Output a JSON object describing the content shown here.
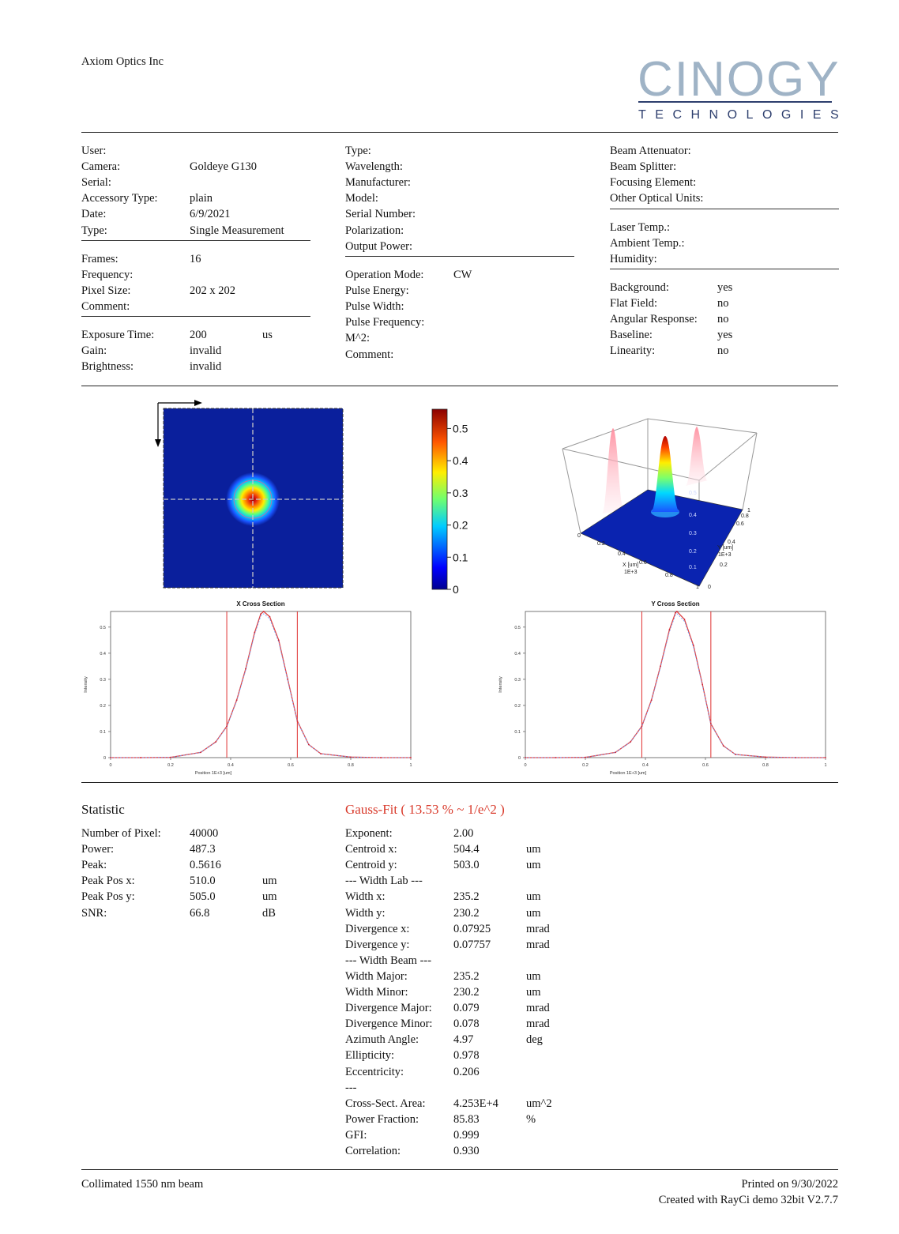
{
  "header": {
    "company": "Axiom Optics Inc",
    "logo_main": "CINOGY",
    "logo_sub": "TECHNOLOGIES"
  },
  "camera_block": {
    "rows1": [
      {
        "label": "User:",
        "value": ""
      },
      {
        "label": "Camera:",
        "value": "Goldeye G130"
      },
      {
        "label": "Serial:",
        "value": ""
      },
      {
        "label": "Accessory Type:",
        "value": "plain"
      },
      {
        "label": "Date:",
        "value": "6/9/2021"
      },
      {
        "label": "Type:",
        "value": "Single Measurement"
      }
    ],
    "rows2": [
      {
        "label": "Frames:",
        "value": "16"
      },
      {
        "label": "Frequency:",
        "value": ""
      },
      {
        "label": "Pixel Size:",
        "value": "202 x 202"
      },
      {
        "label": "Comment:",
        "value": ""
      }
    ],
    "rows3": [
      {
        "label": "Exposure Time:",
        "value": "200",
        "unit": "us"
      },
      {
        "label": "Gain:",
        "value": "invalid",
        "unit": ""
      },
      {
        "label": "Brightness:",
        "value": "invalid",
        "unit": ""
      }
    ]
  },
  "laser_block": {
    "rows1": [
      {
        "label": "Type:",
        "value": ""
      },
      {
        "label": "Wavelength:",
        "value": ""
      },
      {
        "label": "Manufacturer:",
        "value": ""
      },
      {
        "label": "Model:",
        "value": ""
      },
      {
        "label": "Serial Number:",
        "value": ""
      },
      {
        "label": "Polarization:",
        "value": ""
      },
      {
        "label": "Output Power:",
        "value": ""
      }
    ],
    "rows2": [
      {
        "label": "Operation Mode:",
        "value": "CW"
      },
      {
        "label": "Pulse Energy:",
        "value": ""
      },
      {
        "label": "Pulse Width:",
        "value": ""
      },
      {
        "label": "Pulse Frequency:",
        "value": ""
      },
      {
        "label": "M^2:",
        "value": ""
      },
      {
        "label": "Comment:",
        "value": ""
      }
    ]
  },
  "optics_block": {
    "rows1": [
      {
        "label": "Beam Attenuator:",
        "value": ""
      },
      {
        "label": "Beam Splitter:",
        "value": ""
      },
      {
        "label": "Focusing Element:",
        "value": ""
      },
      {
        "label": "Other Optical Units:",
        "value": ""
      }
    ],
    "rows2": [
      {
        "label": "Laser Temp.:",
        "value": ""
      },
      {
        "label": "Ambient Temp.:",
        "value": ""
      },
      {
        "label": "Humidity:",
        "value": ""
      }
    ],
    "rows3": [
      {
        "label": "Background:",
        "value": "yes"
      },
      {
        "label": "Flat Field:",
        "value": "no"
      },
      {
        "label": "Angular Response:",
        "value": "no"
      },
      {
        "label": "Baseline:",
        "value": "yes"
      },
      {
        "label": "Linearity:",
        "value": "no"
      }
    ]
  },
  "colorbar": {
    "ticks": [
      "0.5",
      "0.4",
      "0.3",
      "0.2",
      "0.1",
      "0"
    ]
  },
  "surface_3d": {
    "x_axis_label": "X [um]",
    "x_axis_scale": "1E+3",
    "y_axis_label": "Y [um]",
    "y_axis_scale": "1E+3",
    "x_ticks": [
      "0",
      "0.2",
      "0.4",
      "0.6",
      "0.8",
      "1"
    ],
    "y_ticks": [
      "0",
      "0.2",
      "0.4",
      "0.6",
      "0.8",
      "1"
    ],
    "z_ticks": [
      "0.5",
      "0.4",
      "0.3",
      "0.2",
      "0.1"
    ]
  },
  "chart_data": [
    {
      "type": "line",
      "title": "X Cross Section",
      "xlabel": "Position 1E+3 [um]",
      "ylabel": "Intensity",
      "xlim": [
        0,
        1
      ],
      "ylim": [
        0,
        0.56
      ],
      "x_ticks": [
        "0",
        "0.2",
        "0.4",
        "0.6",
        "0.8",
        "1"
      ],
      "y_ticks": [
        "0",
        "0.1",
        "0.2",
        "0.3",
        "0.4",
        "0.5"
      ],
      "markers": [
        0.387,
        0.622
      ],
      "series": [
        {
          "x": [
            0,
            0.1,
            0.2,
            0.3,
            0.35,
            0.387,
            0.42,
            0.45,
            0.48,
            0.5,
            0.51,
            0.53,
            0.56,
            0.59,
            0.622,
            0.66,
            0.7,
            0.8,
            0.9,
            1.0
          ],
          "values": [
            0,
            0,
            0.001,
            0.02,
            0.06,
            0.12,
            0.22,
            0.34,
            0.48,
            0.55,
            0.56,
            0.54,
            0.45,
            0.3,
            0.14,
            0.05,
            0.015,
            0.002,
            0,
            0
          ]
        }
      ]
    },
    {
      "type": "line",
      "title": "Y Cross Section",
      "xlabel": "Position 1E+3 [um]",
      "ylabel": "Intensity",
      "xlim": [
        0,
        1
      ],
      "ylim": [
        0,
        0.56
      ],
      "x_ticks": [
        "0",
        "0.2",
        "0.4",
        "0.6",
        "0.8",
        "1"
      ],
      "y_ticks": [
        "0",
        "0.1",
        "0.2",
        "0.3",
        "0.4",
        "0.5"
      ],
      "markers": [
        0.388,
        0.618
      ],
      "series": [
        {
          "x": [
            0,
            0.1,
            0.2,
            0.3,
            0.35,
            0.388,
            0.42,
            0.45,
            0.48,
            0.5,
            0.505,
            0.53,
            0.56,
            0.59,
            0.618,
            0.66,
            0.7,
            0.8,
            0.9,
            1.0
          ],
          "values": [
            0,
            0,
            0.001,
            0.02,
            0.06,
            0.12,
            0.22,
            0.35,
            0.49,
            0.555,
            0.56,
            0.53,
            0.43,
            0.28,
            0.13,
            0.045,
            0.012,
            0.002,
            0,
            0
          ]
        }
      ]
    }
  ],
  "statistic": {
    "title": "Statistic",
    "rows": [
      {
        "label": "Number of Pixel:",
        "value": "40000",
        "unit": ""
      },
      {
        "label": "Power:",
        "value": "487.3",
        "unit": ""
      },
      {
        "label": "Peak:",
        "value": "0.5616",
        "unit": ""
      },
      {
        "label": "Peak Pos x:",
        "value": "510.0",
        "unit": "um"
      },
      {
        "label": "Peak Pos y:",
        "value": "505.0",
        "unit": "um"
      },
      {
        "label": "SNR:",
        "value": "66.8",
        "unit": "dB"
      }
    ]
  },
  "gauss_fit": {
    "title": "Gauss-Fit ( 13.53 % ~ 1/e^2 )",
    "rows": [
      {
        "label": "Exponent:",
        "value": "2.00",
        "unit": ""
      },
      {
        "label": "Centroid x:",
        "value": "504.4",
        "unit": "um"
      },
      {
        "label": "Centroid y:",
        "value": "503.0",
        "unit": "um"
      },
      {
        "label": "--- Width Lab ---",
        "value": "",
        "unit": ""
      },
      {
        "label": "Width x:",
        "value": "235.2",
        "unit": "um"
      },
      {
        "label": "Width y:",
        "value": "230.2",
        "unit": "um"
      },
      {
        "label": "Divergence x:",
        "value": "0.07925",
        "unit": "mrad"
      },
      {
        "label": "Divergence y:",
        "value": "0.07757",
        "unit": "mrad"
      },
      {
        "label": "--- Width Beam ---",
        "value": "",
        "unit": ""
      },
      {
        "label": "Width Major:",
        "value": "235.2",
        "unit": "um"
      },
      {
        "label": "Width Minor:",
        "value": "230.2",
        "unit": "um"
      },
      {
        "label": "Divergence Major:",
        "value": "0.079",
        "unit": "mrad"
      },
      {
        "label": "Divergence Minor:",
        "value": "0.078",
        "unit": "mrad"
      },
      {
        "label": "Azimuth Angle:",
        "value": "4.97",
        "unit": "deg"
      },
      {
        "label": "Ellipticity:",
        "value": "0.978",
        "unit": ""
      },
      {
        "label": "Eccentricity:",
        "value": "0.206",
        "unit": ""
      },
      {
        "label": "---",
        "value": "",
        "unit": ""
      },
      {
        "label": "Cross-Sect. Area:",
        "value": "4.253E+4",
        "unit": "um^2"
      },
      {
        "label": "Power Fraction:",
        "value": "85.83",
        "unit": "%"
      },
      {
        "label": "GFI:",
        "value": "0.999",
        "unit": ""
      },
      {
        "label": "Correlation:",
        "value": "0.930",
        "unit": ""
      }
    ]
  },
  "footer": {
    "note": "Collimated 1550 nm beam",
    "printed": "Printed on 9/30/2022",
    "created": "Created with RayCi demo 32bit V2.7.7"
  },
  "colors": {
    "gauss_title": "#d93a2b",
    "logo_light": "#9fb3c6",
    "logo_dark": "#2e3f6e",
    "beam_background": "#0a1f9c"
  }
}
